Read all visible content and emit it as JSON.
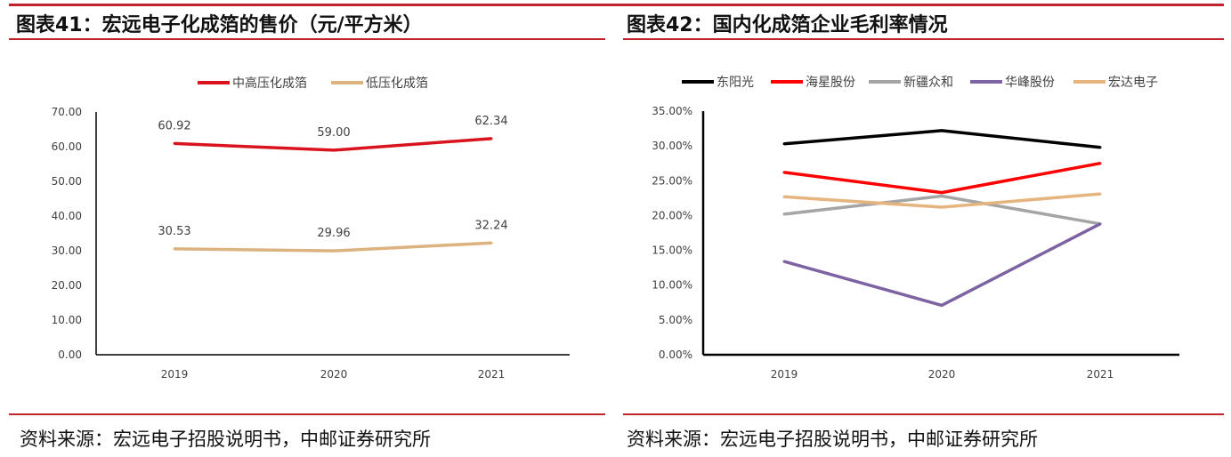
{
  "panels": [
    {
      "title": "图表41：宏远电子化成箔的售价（元/平方米）",
      "source": "资料来源：宏远电子招股说明书，中邮证券研究所"
    },
    {
      "title": "图表42：国内化成箔企业毛利率情况",
      "source": "资料来源：宏远电子招股说明书，中邮证券研究所"
    }
  ],
  "chart_data": [
    {
      "type": "line",
      "categories": [
        "2019",
        "2020",
        "2021"
      ],
      "ylim": [
        0,
        70
      ],
      "yticks": [
        "0.00",
        "10.00",
        "20.00",
        "30.00",
        "40.00",
        "50.00",
        "60.00",
        "70.00"
      ],
      "legend": "top",
      "data_labels": true,
      "series": [
        {
          "name": "中高压化成箔",
          "values": [
            60.92,
            59.0,
            62.34
          ],
          "labels": [
            "60.92",
            "59.00",
            "62.34"
          ],
          "color": "#d9141f"
        },
        {
          "name": "低压化成箔",
          "values": [
            30.53,
            29.96,
            32.24
          ],
          "labels": [
            "30.53",
            "29.96",
            "32.24"
          ],
          "color": "#dcb37f"
        }
      ]
    },
    {
      "type": "line",
      "categories": [
        "2019",
        "2020",
        "2021"
      ],
      "ylim": [
        0,
        35
      ],
      "yticks": [
        "0.00%",
        "5.00%",
        "10.00%",
        "15.00%",
        "20.00%",
        "25.00%",
        "30.00%",
        "35.00%"
      ],
      "legend": "top",
      "series": [
        {
          "name": "东阳光",
          "values": [
            30.3,
            32.2,
            29.8
          ],
          "color": "#000000"
        },
        {
          "name": "海星股份",
          "values": [
            26.2,
            23.3,
            27.5
          ],
          "color": "#ff0000"
        },
        {
          "name": "新疆众和",
          "values": [
            20.2,
            22.8,
            18.8
          ],
          "color": "#a5a5a5"
        },
        {
          "name": "华峰股份",
          "values": [
            13.4,
            7.1,
            18.8
          ],
          "color": "#7e63a2"
        },
        {
          "name": "宏达电子",
          "values": [
            22.7,
            21.2,
            23.1
          ],
          "color": "#e6b47e"
        }
      ]
    }
  ]
}
